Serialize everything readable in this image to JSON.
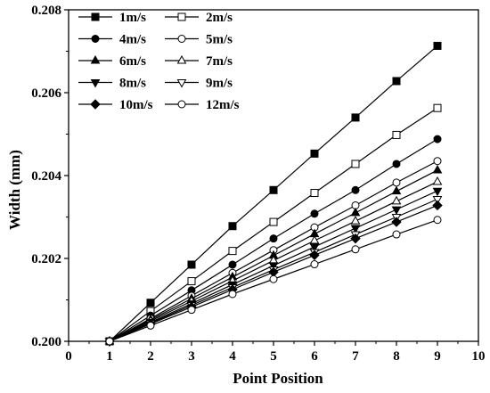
{
  "chart_data": {
    "type": "line",
    "title": "",
    "xlabel": "Point Position",
    "ylabel": "Width (mm)",
    "xlim": [
      0,
      10
    ],
    "ylim": [
      0.2,
      0.208
    ],
    "xticks": [
      "0",
      "1",
      "2",
      "3",
      "4",
      "5",
      "6",
      "7",
      "8",
      "9",
      "10"
    ],
    "yticks": [
      "0.200",
      "0.202",
      "0.204",
      "0.206",
      "0.208"
    ],
    "grid": false,
    "legend_position": "top-left",
    "x": [
      1,
      2,
      3,
      4,
      5,
      6,
      7,
      8,
      9
    ],
    "series": [
      {
        "name": "1m/s",
        "marker": "square-filled",
        "values": [
          0.2,
          0.20093,
          0.20185,
          0.20278,
          0.20365,
          0.20453,
          0.2054,
          0.20628,
          0.20713
        ]
      },
      {
        "name": "2m/s",
        "marker": "square-open",
        "values": [
          0.2,
          0.20073,
          0.20145,
          0.20218,
          0.20288,
          0.20358,
          0.20428,
          0.20498,
          0.20563
        ]
      },
      {
        "name": "4m/s",
        "marker": "circle-filled",
        "values": [
          0.2,
          0.20062,
          0.20123,
          0.20185,
          0.20248,
          0.20308,
          0.20365,
          0.20428,
          0.20488
        ]
      },
      {
        "name": "5m/s",
        "marker": "circle-open",
        "values": [
          0.2,
          0.20055,
          0.2011,
          0.20165,
          0.2022,
          0.20275,
          0.20328,
          0.20383,
          0.20435
        ]
      },
      {
        "name": "6m/s",
        "marker": "triangle-filled",
        "values": [
          0.2,
          0.20052,
          0.20103,
          0.20155,
          0.20207,
          0.20259,
          0.2031,
          0.20362,
          0.20413
        ]
      },
      {
        "name": "7m/s",
        "marker": "triangle-open",
        "values": [
          0.2,
          0.20049,
          0.20097,
          0.20146,
          0.20195,
          0.20243,
          0.2029,
          0.20338,
          0.20385
        ]
      },
      {
        "name": "8m/s",
        "marker": "tri-down-filled",
        "values": [
          0.2,
          0.20046,
          0.20091,
          0.20137,
          0.20183,
          0.20228,
          0.20273,
          0.20318,
          0.20363
        ]
      },
      {
        "name": "9m/s",
        "marker": "tri-down-open",
        "values": [
          0.2,
          0.20044,
          0.20087,
          0.2013,
          0.20173,
          0.20215,
          0.20258,
          0.203,
          0.20343
        ]
      },
      {
        "name": "10m/s",
        "marker": "diamond-filled",
        "values": [
          0.2,
          0.20042,
          0.20083,
          0.20125,
          0.20167,
          0.20208,
          0.20248,
          0.20288,
          0.20328
        ]
      },
      {
        "name": "12m/s",
        "marker": "circle-open",
        "values": [
          0.2,
          0.20038,
          0.20076,
          0.20114,
          0.2015,
          0.20186,
          0.20222,
          0.20258,
          0.20293
        ]
      }
    ]
  }
}
